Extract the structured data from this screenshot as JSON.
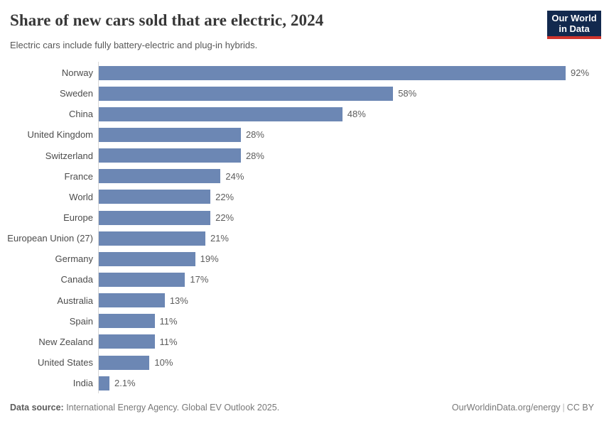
{
  "header": {
    "title": "Share of new cars sold that are electric, 2024",
    "subtitle": "Electric cars include fully battery-electric and plug-in hybrids.",
    "logo": {
      "line1": "Our World",
      "line2": "in Data"
    }
  },
  "chart_data": {
    "type": "bar",
    "orientation": "horizontal",
    "title": "Share of new cars sold that are electric, 2024",
    "subtitle": "Electric cars include fully battery-electric and plug-in hybrids.",
    "categories": [
      "Norway",
      "Sweden",
      "China",
      "United Kingdom",
      "Switzerland",
      "France",
      "World",
      "Europe",
      "European Union (27)",
      "Germany",
      "Canada",
      "Australia",
      "Spain",
      "New Zealand",
      "United States",
      "India"
    ],
    "values": [
      92,
      58,
      48,
      28,
      28,
      24,
      22,
      22,
      21,
      19,
      17,
      13,
      11,
      11,
      10,
      2.1
    ],
    "value_labels": [
      "92%",
      "58%",
      "48%",
      "28%",
      "28%",
      "24%",
      "22%",
      "22%",
      "21%",
      "19%",
      "17%",
      "13%",
      "11%",
      "11%",
      "10%",
      "2.1%"
    ],
    "unit": "%",
    "xlim": [
      0,
      92
    ],
    "grid": false,
    "legend": false
  },
  "footer": {
    "source_label": "Data source:",
    "source_text": " International Energy Agency. Global EV Outlook 2025.",
    "link": "OurWorldinData.org/energy",
    "separator": "|",
    "license": "CC BY"
  },
  "colors": {
    "bar": "#6c87b4",
    "logo_bg": "#12294e",
    "logo_accent": "#d0342c"
  }
}
